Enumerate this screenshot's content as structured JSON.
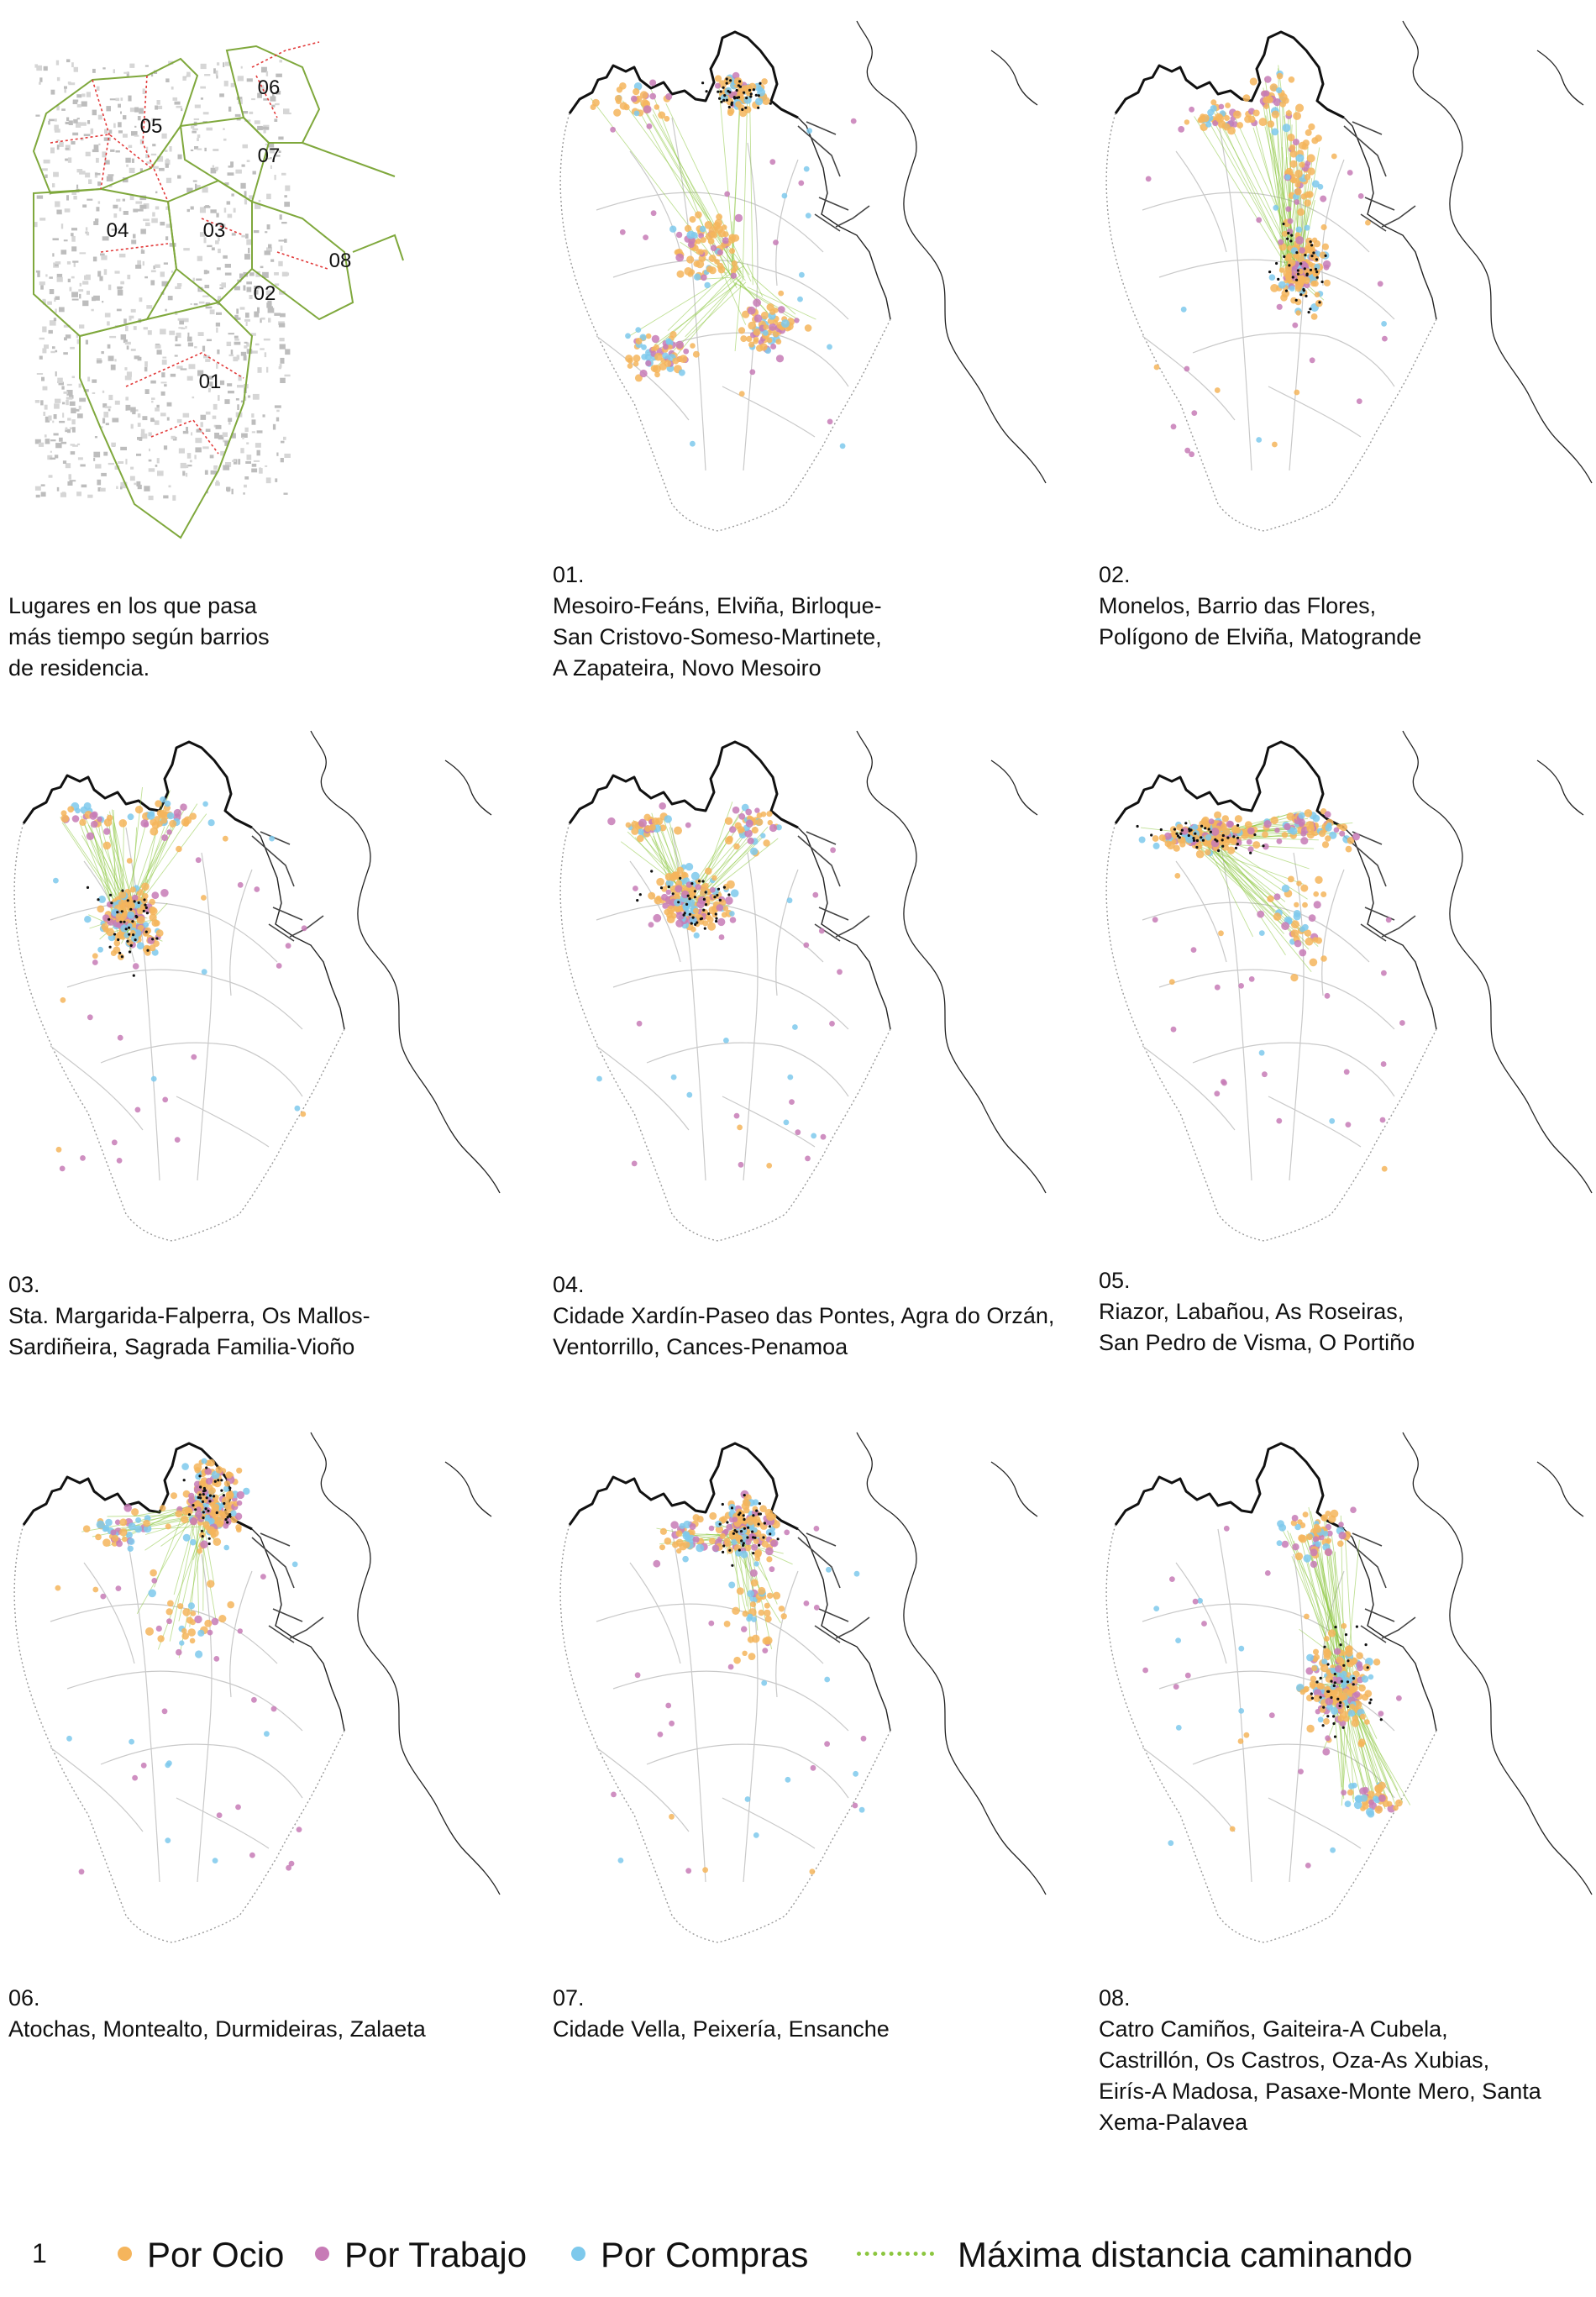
{
  "overview": {
    "zones": [
      {
        "id": "01",
        "label": "01"
      },
      {
        "id": "02",
        "label": "02"
      },
      {
        "id": "03",
        "label": "03"
      },
      {
        "id": "04",
        "label": "04"
      },
      {
        "id": "05",
        "label": "05"
      },
      {
        "id": "06",
        "label": "06"
      },
      {
        "id": "07",
        "label": "07"
      },
      {
        "id": "08",
        "label": "08"
      }
    ],
    "caption": [
      "Lugares en los que pasa",
      "más tiempo según barrios",
      "de residencia."
    ]
  },
  "panels": [
    {
      "id": "01",
      "number": "01.",
      "lines": [
        "Mesoiro-Feáns, Elviña, Birloque-",
        "San Cristovo-Someso-Martinete,",
        "A Zapateira, Novo Mesoiro"
      ]
    },
    {
      "id": "02",
      "number": "02.",
      "lines": [
        "Monelos, Barrio das Flores,",
        "Polígono de Elviña, Matogrande"
      ]
    },
    {
      "id": "03",
      "number": "03.",
      "lines": [
        "Sta. Margarida-Falperra, Os Mallos-",
        "Sardiñeira, Sagrada Familia-Vioño"
      ]
    },
    {
      "id": "04",
      "number": "04.",
      "lines": [
        "Cidade Xardín-Paseo das Pontes, Agra do Orzán,",
        "Ventorrillo, Cances-Penamoa"
      ]
    },
    {
      "id": "05",
      "number": "05.",
      "lines": [
        "Riazor, Labañou, As Roseiras,",
        "San Pedro de Visma, O Portiño"
      ]
    },
    {
      "id": "06",
      "number": "06.",
      "lines": [
        "Atochas, Montealto, Durmideiras, Zalaeta"
      ]
    },
    {
      "id": "07",
      "number": "07.",
      "lines": [
        "Cidade Vella, Peixería, Ensanche"
      ]
    },
    {
      "id": "08",
      "number": "08.",
      "lines": [
        "Catro Camiños, Gaiteira-A Cubela,",
        "Castrillón, Os Castros, Oza-As Xubias,",
        "Eirís-A Madosa, Pasaxe-Monte Mero, Santa",
        "Xema-Palavea"
      ]
    }
  ],
  "legend": {
    "figure_number": "1",
    "items": [
      {
        "id": "ocio",
        "label": "Por Ocio",
        "color": "#f5b55c"
      },
      {
        "id": "trabajo",
        "label": "Por Trabajo",
        "color": "#c77bb6"
      },
      {
        "id": "compras",
        "label": "Por Compras",
        "color": "#7ec9ec"
      },
      {
        "id": "distancia",
        "label": "Máxima distancia caminando",
        "color": "#8cc63f"
      }
    ]
  },
  "colors": {
    "ocio": "#f5b55c",
    "trabajo": "#c77bb6",
    "compras": "#7ec9ec",
    "walk_line": "#8cc63f",
    "coast": "#111111",
    "boundary": "#9a9a9a",
    "district_red": "#e23a3a",
    "district_green": "#7fa83c"
  }
}
